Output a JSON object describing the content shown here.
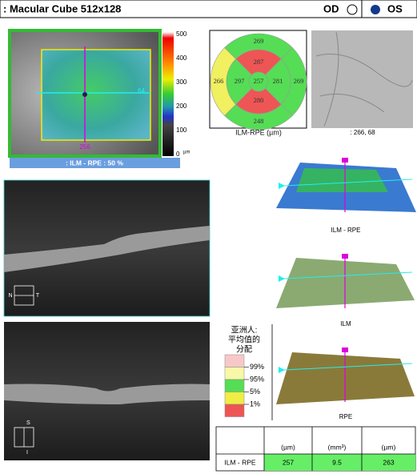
{
  "header": {
    "title": ": Macular Cube 512x128",
    "od": "OD",
    "os": "OS"
  },
  "thickness_map": {
    "scale_labels": [
      "500",
      "400",
      "300",
      "200",
      "100",
      "0"
    ],
    "scale_unit": "µm",
    "marker_bottom": "256",
    "marker_right": "64",
    "caption": ": ILM - RPE     : 50 %"
  },
  "etdrs": {
    "outer_top": "269",
    "outer_left": "266",
    "outer_right": "269",
    "outer_bottom": "248",
    "inner_top": "287",
    "inner_left": "297",
    "inner_right": "281",
    "inner_bottom": "280",
    "center": "257",
    "label": "ILM-RPE   (µm)"
  },
  "slo": {
    "caption": ": 266, 68"
  },
  "surfaces": [
    "ILM - RPE",
    "ILM",
    "RPE"
  ],
  "bscans": {
    "h_left": "N",
    "h_right": "T",
    "v_top": "S",
    "v_bottom": "I"
  },
  "legend": {
    "title": [
      "亚洲人:",
      "平均值的",
      "分配"
    ],
    "items": [
      "99%",
      "95%",
      "5%",
      "1%"
    ]
  },
  "table": {
    "headers": [
      "(µm)",
      "(mm³)",
      "(µm)"
    ],
    "row": [
      "ILM - RPE",
      "257",
      "9.5",
      "263"
    ]
  }
}
